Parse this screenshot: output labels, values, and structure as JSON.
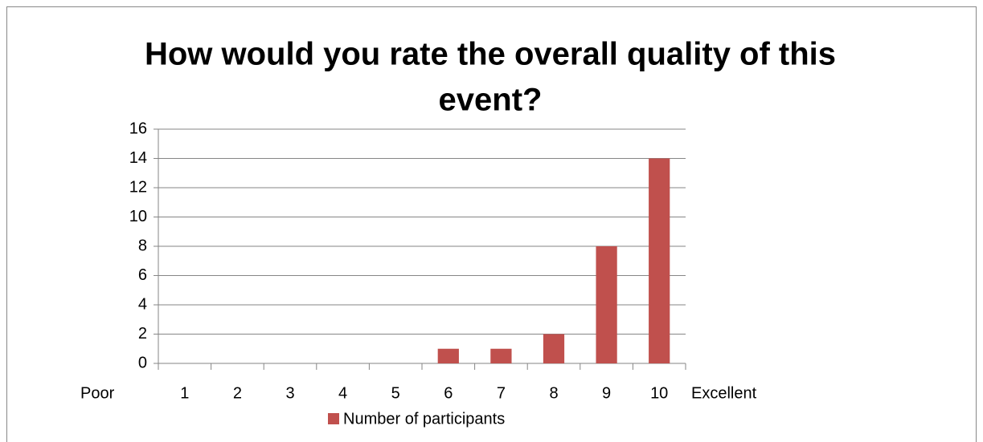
{
  "chart_data": {
    "type": "bar",
    "title": [
      "How would you rate the overall quality of this",
      "event?"
    ],
    "categories": [
      "1",
      "2",
      "3",
      "4",
      "5",
      "6",
      "7",
      "8",
      "9",
      "10"
    ],
    "series": [
      {
        "name": "Number of participants",
        "color": "#c0504d",
        "values": [
          0,
          0,
          0,
          0,
          0,
          1,
          1,
          2,
          8,
          14
        ]
      }
    ],
    "annotations": [
      "Poor",
      "Excellent"
    ],
    "ylim": [
      0,
      16
    ],
    "yticks": [
      0,
      2,
      4,
      6,
      8,
      10,
      12,
      14,
      16
    ],
    "grid": true,
    "legend": "bottom"
  }
}
